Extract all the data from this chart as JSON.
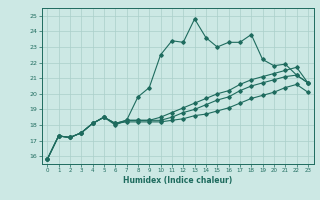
{
  "xlabel": "Humidex (Indice chaleur)",
  "bg_color": "#cce8e4",
  "grid_color": "#aacfca",
  "line_color": "#1e6b5e",
  "xlim": [
    -0.5,
    23.5
  ],
  "ylim": [
    15.5,
    25.5
  ],
  "yticks": [
    16,
    17,
    18,
    19,
    20,
    21,
    22,
    23,
    24,
    25
  ],
  "xticks": [
    0,
    1,
    2,
    3,
    4,
    5,
    6,
    7,
    8,
    9,
    10,
    11,
    12,
    13,
    14,
    15,
    16,
    17,
    18,
    19,
    20,
    21,
    22,
    23
  ],
  "lines": [
    {
      "x": [
        0,
        1,
        2,
        3,
        4,
        5,
        6,
        7,
        8,
        9,
        10,
        11,
        12,
        13,
        14,
        15,
        16,
        17,
        18,
        19,
        20,
        21,
        22,
        23
      ],
      "y": [
        15.8,
        17.3,
        17.2,
        17.5,
        18.1,
        18.5,
        18.0,
        18.3,
        19.8,
        20.4,
        22.5,
        23.4,
        23.3,
        24.8,
        23.6,
        23.0,
        23.3,
        23.3,
        23.8,
        22.2,
        21.8,
        21.9,
        21.2,
        20.7
      ]
    },
    {
      "x": [
        0,
        1,
        2,
        3,
        4,
        5,
        6,
        7,
        8,
        9,
        10,
        11,
        12,
        13,
        14,
        15,
        16,
        17,
        18,
        19,
        20,
        21,
        22,
        23
      ],
      "y": [
        15.8,
        17.3,
        17.2,
        17.5,
        18.1,
        18.5,
        18.1,
        18.3,
        18.3,
        18.3,
        18.5,
        18.8,
        19.1,
        19.4,
        19.7,
        20.0,
        20.2,
        20.6,
        20.9,
        21.1,
        21.3,
        21.5,
        21.7,
        20.7
      ]
    },
    {
      "x": [
        0,
        1,
        2,
        3,
        4,
        5,
        6,
        7,
        8,
        9,
        10,
        11,
        12,
        13,
        14,
        15,
        16,
        17,
        18,
        19,
        20,
        21,
        22,
        23
      ],
      "y": [
        15.8,
        17.3,
        17.2,
        17.5,
        18.1,
        18.5,
        18.1,
        18.3,
        18.3,
        18.3,
        18.3,
        18.5,
        18.8,
        19.0,
        19.3,
        19.6,
        19.8,
        20.2,
        20.5,
        20.7,
        20.9,
        21.1,
        21.2,
        20.7
      ]
    },
    {
      "x": [
        0,
        1,
        2,
        3,
        4,
        5,
        6,
        7,
        8,
        9,
        10,
        11,
        12,
        13,
        14,
        15,
        16,
        17,
        18,
        19,
        20,
        21,
        22,
        23
      ],
      "y": [
        15.8,
        17.3,
        17.2,
        17.5,
        18.1,
        18.5,
        18.1,
        18.2,
        18.2,
        18.2,
        18.2,
        18.3,
        18.4,
        18.6,
        18.7,
        18.9,
        19.1,
        19.4,
        19.7,
        19.9,
        20.1,
        20.4,
        20.6,
        20.1
      ]
    }
  ]
}
